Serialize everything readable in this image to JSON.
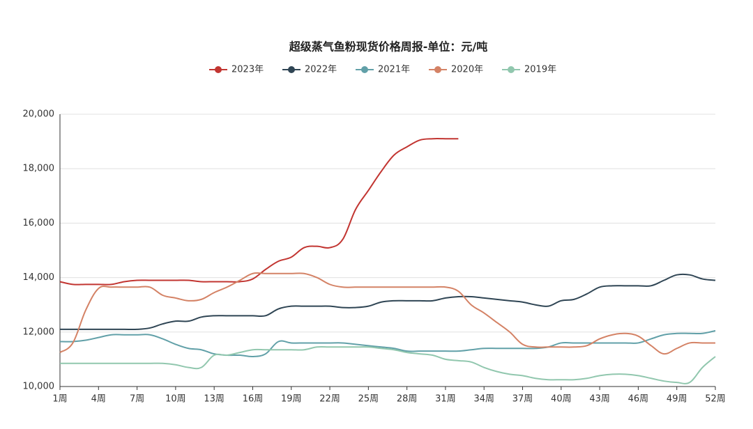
{
  "chart_data": {
    "type": "line",
    "title": "超级蒸气鱼粉现货价格周报-单位：元/吨",
    "categories": [
      "1周",
      null,
      null,
      "4周",
      null,
      null,
      "7周",
      null,
      null,
      "10周",
      null,
      null,
      "13周",
      null,
      null,
      "16周",
      null,
      null,
      "19周",
      null,
      null,
      "22周",
      null,
      null,
      "25周",
      null,
      null,
      "28周",
      null,
      null,
      "31周",
      null,
      null,
      "34周",
      null,
      null,
      "37周",
      null,
      null,
      "40周",
      null,
      null,
      "43周",
      null,
      null,
      "46周",
      null,
      null,
      "49周",
      null,
      null,
      "52周"
    ],
    "ylim": [
      10000,
      20000
    ],
    "yticks": [
      {
        "value": 10000,
        "label": "10,000"
      },
      {
        "value": 12000,
        "label": "12,000"
      },
      {
        "value": 14000,
        "label": "14,000"
      },
      {
        "value": 16000,
        "label": "16,000"
      },
      {
        "value": 18000,
        "label": "18,000"
      },
      {
        "value": 20000,
        "label": "20,000"
      }
    ],
    "grid": true,
    "legend": "top",
    "series": [
      {
        "name": "2023年",
        "color": "#c23531",
        "values": [
          13850,
          13750,
          13750,
          13750,
          13750,
          13850,
          13900,
          13900,
          13900,
          13900,
          13900,
          13850,
          13850,
          13850,
          13850,
          13950,
          14300,
          14600,
          14750,
          15100,
          15150,
          15100,
          15400,
          16500,
          17200,
          17900,
          18500,
          18800,
          19050,
          19100,
          19100,
          19100,
          null,
          null,
          null,
          null,
          null,
          null,
          null,
          null,
          null,
          null,
          null,
          null,
          null,
          null,
          null,
          null,
          null,
          null,
          null,
          null
        ]
      },
      {
        "name": "2022年",
        "color": "#2f4554",
        "values": [
          12100,
          12100,
          12100,
          12100,
          12100,
          12100,
          12100,
          12150,
          12300,
          12400,
          12400,
          12550,
          12600,
          12600,
          12600,
          12600,
          12600,
          12850,
          12950,
          12950,
          12950,
          12950,
          12900,
          12900,
          12950,
          13100,
          13150,
          13150,
          13150,
          13150,
          13250,
          13300,
          13300,
          13250,
          13200,
          13150,
          13100,
          13000,
          12950,
          13150,
          13200,
          13400,
          13650,
          13700,
          13700,
          13700,
          13700,
          13900,
          14100,
          14100,
          13950,
          13900
        ]
      },
      {
        "name": "2021年",
        "color": "#61a0a8",
        "values": [
          11650,
          11650,
          11700,
          11800,
          11900,
          11900,
          11900,
          11900,
          11750,
          11550,
          11400,
          11350,
          11200,
          11150,
          11150,
          11100,
          11200,
          11650,
          11600,
          11600,
          11600,
          11600,
          11600,
          11550,
          11500,
          11450,
          11400,
          11300,
          11300,
          11300,
          11300,
          11300,
          11350,
          11400,
          11400,
          11400,
          11400,
          11400,
          11450,
          11600,
          11600,
          11600,
          11600,
          11600,
          11600,
          11600,
          11750,
          11900,
          11950,
          11950,
          11950,
          12050
        ]
      },
      {
        "name": "2020年",
        "color": "#d48265",
        "values": [
          11250,
          11600,
          12800,
          13600,
          13650,
          13650,
          13650,
          13650,
          13350,
          13250,
          13150,
          13200,
          13450,
          13650,
          13900,
          14150,
          14150,
          14150,
          14150,
          14150,
          14000,
          13750,
          13650,
          13650,
          13650,
          13650,
          13650,
          13650,
          13650,
          13650,
          13650,
          13500,
          13000,
          12700,
          12350,
          12000,
          11550,
          11450,
          11450,
          11450,
          11450,
          11500,
          11750,
          11900,
          11950,
          11850,
          11500,
          11200,
          11400,
          11600,
          11600,
          11600
        ]
      },
      {
        "name": "2019年",
        "color": "#91c7ae",
        "values": [
          10850,
          10850,
          10850,
          10850,
          10850,
          10850,
          10850,
          10850,
          10850,
          10800,
          10700,
          10700,
          11150,
          11150,
          11250,
          11350,
          11350,
          11350,
          11350,
          11350,
          11450,
          11450,
          11450,
          11450,
          11450,
          11400,
          11350,
          11250,
          11200,
          11150,
          11000,
          10950,
          10900,
          10700,
          10550,
          10450,
          10400,
          10300,
          10250,
          10250,
          10250,
          10300,
          10400,
          10450,
          10450,
          10400,
          10300,
          10200,
          10150,
          10150,
          10700,
          11100
        ]
      }
    ]
  }
}
